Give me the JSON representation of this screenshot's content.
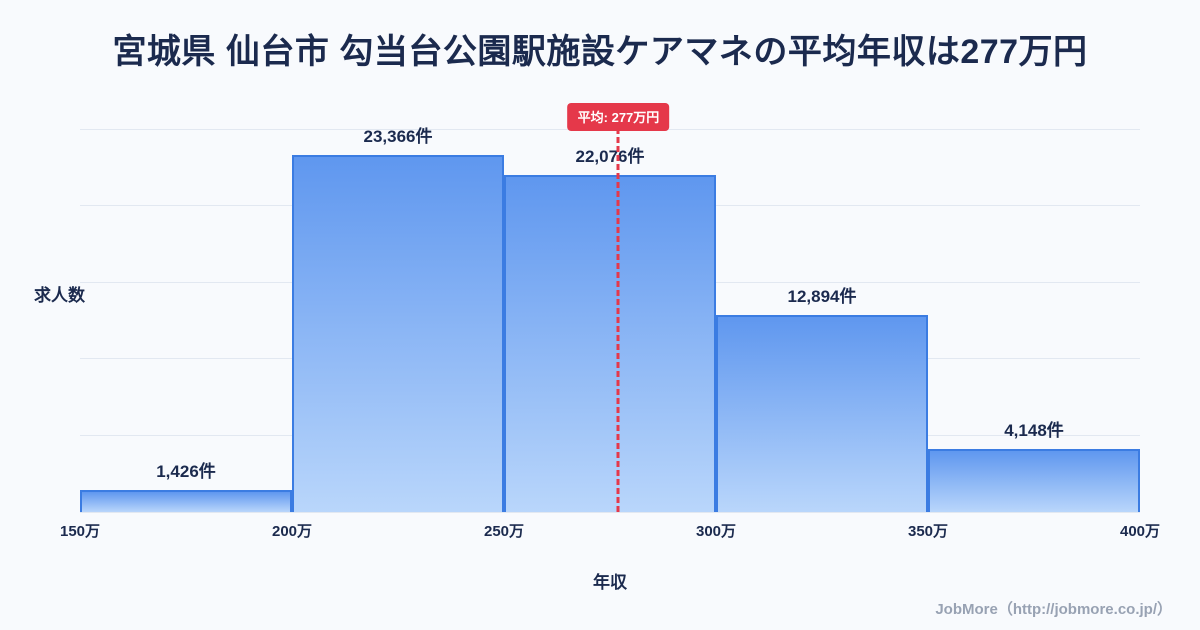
{
  "chart_data": {
    "type": "bar",
    "title": "宮城県 仙台市 勾当台公園駅施設ケアマネの平均年収は277万円",
    "xlabel": "年収",
    "ylabel": "求人数",
    "bin_edges": [
      150,
      200,
      250,
      300,
      350,
      400
    ],
    "bin_edges_labels": [
      "150万",
      "200万",
      "250万",
      "300万",
      "350万",
      "400万"
    ],
    "values": [
      1426,
      23366,
      22076,
      12894,
      4148
    ],
    "bar_labels": [
      "1,426件",
      "23,366件",
      "22,076件",
      "12,894件",
      "4,148件"
    ],
    "ylim": [
      0,
      25000
    ],
    "grid": true,
    "gridline_count": 5,
    "legend": "none",
    "average": 277,
    "average_label": "平均: 277万円"
  },
  "footer": {
    "text": "JobMore（http://jobmore.co.jp/）"
  },
  "colors": {
    "background": "#f8fafd",
    "ink": "#1b2a4e",
    "accent": "#e5384a",
    "bar_top": "#5f97ef",
    "bar_bottom": "#b9d6fb",
    "bar_border": "#3b7ce2",
    "grid": "#e2e8f1",
    "muted": "#98a2b3"
  }
}
